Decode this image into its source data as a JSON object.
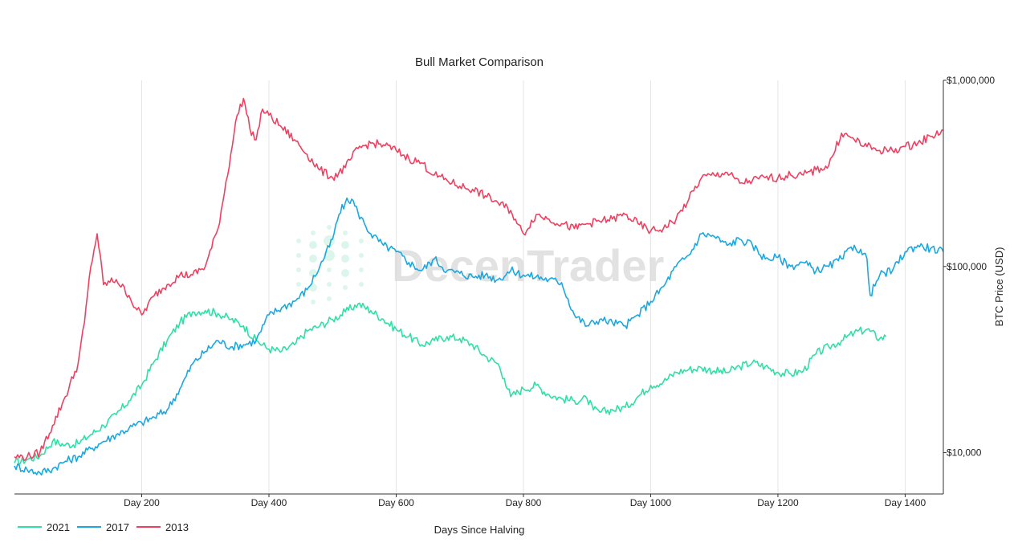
{
  "chart_data": {
    "type": "line",
    "title": "Bull Market Comparison",
    "xlabel": "Days Since Halving",
    "ylabel": "BTC Price (USD)",
    "y_scale": "log",
    "y_axis_side": "right",
    "xlim": [
      0,
      1460
    ],
    "ylim": [
      6000,
      1000000
    ],
    "x_ticks": [
      200,
      400,
      600,
      800,
      1000,
      1200,
      1400
    ],
    "x_tick_labels": [
      "Day 200",
      "Day 400",
      "Day 600",
      "Day 800",
      "Day 1000",
      "Day 1200",
      "Day 1400"
    ],
    "y_ticks": [
      10000,
      100000,
      1000000
    ],
    "y_tick_labels": [
      "$10,000",
      "$100,000",
      "$1,000,000"
    ],
    "grid": "vertical",
    "legend_position": "bottom-left",
    "watermark": "DecenTrader",
    "series": [
      {
        "name": "2021",
        "color": "#2de0a5",
        "x": [
          0,
          20,
          40,
          60,
          80,
          100,
          120,
          140,
          160,
          180,
          200,
          220,
          240,
          260,
          280,
          300,
          320,
          340,
          360,
          380,
          400,
          420,
          440,
          460,
          480,
          500,
          520,
          540,
          560,
          580,
          600,
          620,
          640,
          660,
          680,
          700,
          720,
          740,
          760,
          770,
          780,
          800,
          820,
          840,
          860,
          880,
          900,
          910,
          920,
          940,
          960,
          980,
          1000,
          1020,
          1040,
          1060,
          1080,
          1100,
          1120,
          1140,
          1160,
          1180,
          1200,
          1220,
          1240,
          1260,
          1280,
          1300,
          1320,
          1340,
          1360,
          1370
        ],
        "values": [
          8800,
          9200,
          9600,
          11500,
          11000,
          11200,
          12500,
          14000,
          16000,
          19000,
          23000,
          31000,
          40000,
          50000,
          57000,
          58000,
          56000,
          52000,
          48000,
          40000,
          36000,
          35000,
          38000,
          45000,
          48000,
          52000,
          57000,
          63000,
          58000,
          52000,
          46000,
          42000,
          38000,
          40000,
          42000,
          41000,
          38000,
          33000,
          30000,
          25000,
          20000,
          22000,
          23000,
          20500,
          19500,
          19000,
          19500,
          17000,
          16500,
          17000,
          17500,
          20000,
          23000,
          24000,
          27000,
          28000,
          28500,
          27500,
          27000,
          29000,
          30500,
          29000,
          27000,
          26500,
          27500,
          34000,
          37000,
          40000,
          44000,
          46000,
          41000,
          42000
        ]
      },
      {
        "name": "2017",
        "color": "#1aa8e2",
        "x": [
          0,
          20,
          40,
          60,
          80,
          100,
          120,
          140,
          160,
          180,
          200,
          220,
          240,
          260,
          280,
          300,
          320,
          340,
          360,
          380,
          400,
          420,
          440,
          460,
          480,
          500,
          510,
          520,
          530,
          540,
          550,
          560,
          580,
          600,
          620,
          640,
          660,
          680,
          700,
          720,
          740,
          760,
          780,
          800,
          820,
          840,
          860,
          880,
          900,
          920,
          940,
          960,
          980,
          1000,
          1020,
          1040,
          1060,
          1080,
          1100,
          1120,
          1140,
          1160,
          1180,
          1200,
          1220,
          1240,
          1260,
          1280,
          1300,
          1320,
          1340,
          1345,
          1360,
          1380,
          1400,
          1420,
          1440,
          1460
        ],
        "values": [
          8500,
          8100,
          7800,
          8200,
          9000,
          9500,
          10500,
          11500,
          12500,
          13500,
          14500,
          15500,
          17000,
          22000,
          30000,
          35000,
          40000,
          37000,
          38000,
          40000,
          55000,
          60000,
          65000,
          75000,
          100000,
          140000,
          190000,
          220000,
          230000,
          195000,
          170000,
          150000,
          130000,
          120000,
          105000,
          95000,
          110000,
          95000,
          92000,
          88000,
          90000,
          85000,
          95000,
          90000,
          88000,
          85000,
          82000,
          55000,
          48000,
          52000,
          50000,
          48000,
          55000,
          65000,
          78000,
          100000,
          115000,
          150000,
          145000,
          130000,
          140000,
          130000,
          110000,
          112000,
          100000,
          105000,
          95000,
          100000,
          110000,
          130000,
          110000,
          70000,
          90000,
          95000,
          120000,
          130000,
          125000,
          120000
        ]
      },
      {
        "name": "2013",
        "color": "#f23f5f",
        "x": [
          0,
          20,
          40,
          60,
          80,
          100,
          110,
          120,
          130,
          140,
          160,
          180,
          190,
          200,
          220,
          240,
          260,
          280,
          300,
          320,
          340,
          350,
          360,
          370,
          380,
          390,
          400,
          420,
          440,
          460,
          480,
          500,
          520,
          540,
          560,
          580,
          600,
          620,
          640,
          660,
          680,
          700,
          720,
          740,
          760,
          780,
          790,
          800,
          820,
          840,
          860,
          880,
          900,
          920,
          940,
          960,
          980,
          1000,
          1020,
          1040,
          1060,
          1080,
          1100,
          1120,
          1140,
          1160,
          1180,
          1200,
          1220,
          1240,
          1260,
          1280,
          1300,
          1320,
          1340,
          1360,
          1380,
          1400,
          1420,
          1440,
          1460
        ],
        "values": [
          9500,
          9500,
          10000,
          14000,
          20000,
          30000,
          50000,
          100000,
          150000,
          80000,
          85000,
          70000,
          60000,
          55000,
          70000,
          80000,
          90000,
          90000,
          100000,
          160000,
          400000,
          650000,
          800000,
          550000,
          480000,
          700000,
          650000,
          560000,
          480000,
          400000,
          330000,
          300000,
          340000,
          430000,
          460000,
          450000,
          420000,
          380000,
          360000,
          310000,
          290000,
          270000,
          260000,
          240000,
          220000,
          200000,
          170000,
          150000,
          190000,
          180000,
          170000,
          160000,
          170000,
          175000,
          180000,
          190000,
          170000,
          155000,
          160000,
          180000,
          230000,
          300000,
          310000,
          320000,
          280000,
          290000,
          300000,
          300000,
          310000,
          310000,
          330000,
          350000,
          520000,
          480000,
          440000,
          420000,
          420000,
          440000,
          460000,
          500000,
          540000
        ]
      }
    ]
  }
}
